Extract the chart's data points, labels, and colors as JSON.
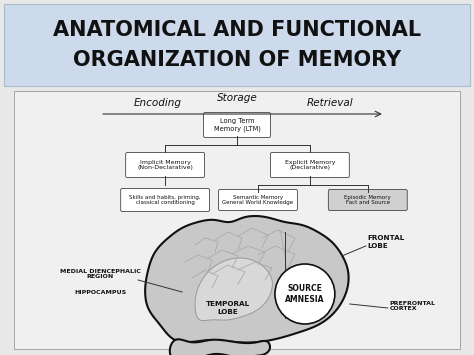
{
  "title_line1": "ANATOMICAL AND FUNCTIONAL",
  "title_line2": "ORGANIZATION OF MEMORY",
  "title_bg": "#ccdaeb",
  "title_fontsize": 15,
  "bg_color": "#e8e8e8",
  "box_facecolor": "#ffffff",
  "box_edgecolor": "#444444",
  "text_color": "#111111",
  "label_encoding": "Encoding",
  "label_storage": "Storage",
  "label_retrieval": "Retrieval",
  "label_ltm": "Long Term\nMemory (LTM)",
  "label_implicit": "Implicit Memory\n(Non-Declarative)",
  "label_explicit": "Explicit Memory\n(Declarative)",
  "label_skills": "Skills and habits, priming,\nclassical conditioning",
  "label_semantic": "Semantic Memory\nGeneral World Knowledge",
  "label_episodic": "Episodic Memory\nFact and Source",
  "label_frontal": "FRONTAL\nLOBE",
  "label_temporal": "TEMPORAL\nLOBE",
  "label_source": "SOURCE\nAMNESIA",
  "label_medial": "MEDIAL DIENCEPHALIC\nREGION",
  "label_hippocampus": "HIPPOCAMPUS",
  "label_prefrontal": "PREFRONTAL\nCORTEX",
  "brain_color": "#c8c8c8",
  "brain_edge": "#111111",
  "fold_color": "#aaaaaa",
  "diagram_bg": "#f0f0f0",
  "diagram_edge": "#999999"
}
